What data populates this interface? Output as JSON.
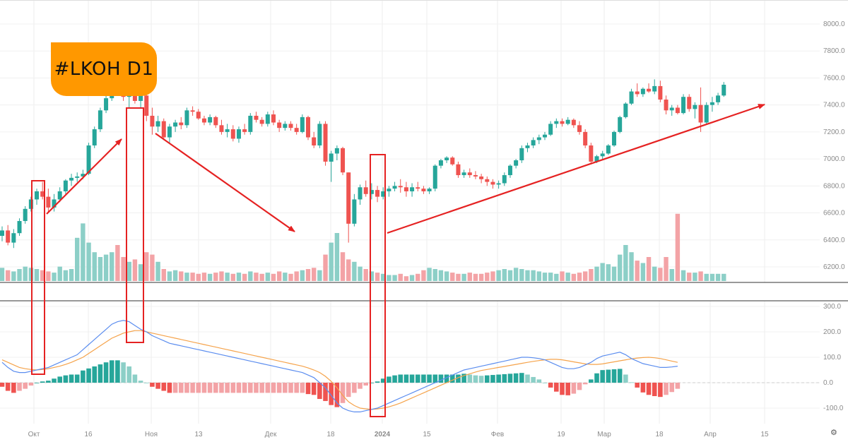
{
  "badge_text": "#LKOH D1",
  "settings_icon": "gear-icon",
  "colors": {
    "up": "#26a69a",
    "down": "#ef5350",
    "vol_up": "#8ccfc7",
    "vol_down": "#f3a3a6",
    "macd_line": "#5b8def",
    "signal_line": "#f5a34b",
    "arrow": "#e52222",
    "box": "#e52222",
    "badge": "#ff9800"
  },
  "chart_data": [
    {
      "type": "candlestick",
      "title": "#LKOH D1",
      "price_ticks": [
        "8000.0",
        "7800.0",
        "7600.0",
        "7400.0",
        "7200.0",
        "7000.0",
        "6800.0",
        "6600.0",
        "6400.0",
        "6200.0"
      ],
      "ylim": [
        6100,
        8100
      ],
      "x_labels": [
        "Окт",
        "16",
        "Ноя",
        "13",
        "Дек",
        "18",
        "2024",
        "15",
        "Фев",
        "19",
        "Мар",
        "18",
        "Апр",
        "15"
      ],
      "grid": true,
      "candles": [
        [
          6430,
          6500,
          6390,
          6470
        ],
        [
          6470,
          6510,
          6360,
          6380
        ],
        [
          6380,
          6480,
          6340,
          6450
        ],
        [
          6450,
          6560,
          6430,
          6540
        ],
        [
          6540,
          6650,
          6520,
          6630
        ],
        [
          6630,
          6720,
          6610,
          6700
        ],
        [
          6700,
          6780,
          6660,
          6760
        ],
        [
          6760,
          6830,
          6700,
          6720
        ],
        [
          6720,
          6780,
          6600,
          6640
        ],
        [
          6640,
          6740,
          6610,
          6700
        ],
        [
          6700,
          6790,
          6680,
          6760
        ],
        [
          6760,
          6850,
          6740,
          6840
        ],
        [
          6840,
          6890,
          6800,
          6860
        ],
        [
          6860,
          6900,
          6830,
          6870
        ],
        [
          6870,
          6920,
          6850,
          6890
        ],
        [
          6890,
          7120,
          6880,
          7100
        ],
        [
          7100,
          7240,
          7080,
          7220
        ],
        [
          7220,
          7380,
          7200,
          7360
        ],
        [
          7360,
          7480,
          7340,
          7450
        ],
        [
          7450,
          7560,
          7430,
          7540
        ],
        [
          7540,
          7600,
          7480,
          7520
        ],
        [
          7520,
          7560,
          7430,
          7460
        ],
        [
          7460,
          7510,
          7380,
          7490
        ],
        [
          7490,
          7520,
          7410,
          7430
        ],
        [
          7430,
          7500,
          7380,
          7470
        ],
        [
          7470,
          7490,
          7280,
          7320
        ],
        [
          7320,
          7380,
          7180,
          7240
        ],
        [
          7240,
          7320,
          7200,
          7280
        ],
        [
          7280,
          7300,
          7140,
          7160
        ],
        [
          7160,
          7260,
          7120,
          7240
        ],
        [
          7240,
          7290,
          7200,
          7270
        ],
        [
          7270,
          7310,
          7220,
          7250
        ],
        [
          7250,
          7380,
          7230,
          7360
        ],
        [
          7360,
          7390,
          7320,
          7350
        ],
        [
          7350,
          7370,
          7290,
          7300
        ],
        [
          7300,
          7320,
          7250,
          7270
        ],
        [
          7270,
          7330,
          7250,
          7310
        ],
        [
          7310,
          7320,
          7230,
          7250
        ],
        [
          7250,
          7290,
          7180,
          7200
        ],
        [
          7200,
          7260,
          7160,
          7220
        ],
        [
          7220,
          7250,
          7130,
          7150
        ],
        [
          7150,
          7240,
          7120,
          7220
        ],
        [
          7220,
          7260,
          7180,
          7200
        ],
        [
          7200,
          7340,
          7180,
          7320
        ],
        [
          7320,
          7350,
          7270,
          7290
        ],
        [
          7290,
          7310,
          7240,
          7260
        ],
        [
          7260,
          7350,
          7240,
          7330
        ],
        [
          7330,
          7360,
          7250,
          7270
        ],
        [
          7270,
          7290,
          7200,
          7230
        ],
        [
          7230,
          7280,
          7210,
          7260
        ],
        [
          7260,
          7280,
          7210,
          7230
        ],
        [
          7230,
          7260,
          7180,
          7200
        ],
        [
          7200,
          7330,
          7190,
          7310
        ],
        [
          7310,
          7320,
          7140,
          7160
        ],
        [
          7160,
          7200,
          7080,
          7100
        ],
        [
          7100,
          7280,
          7080,
          7260
        ],
        [
          7260,
          7280,
          6950,
          6980
        ],
        [
          6980,
          7060,
          6830,
          7040
        ],
        [
          7040,
          7100,
          6990,
          7080
        ],
        [
          7080,
          7090,
          6880,
          6900
        ],
        [
          6900,
          6900,
          6380,
          6520
        ],
        [
          6520,
          6740,
          6500,
          6700
        ],
        [
          6700,
          6810,
          6660,
          6790
        ],
        [
          6790,
          6840,
          6720,
          6740
        ],
        [
          6740,
          6820,
          6700,
          6770
        ],
        [
          6770,
          6800,
          6680,
          6720
        ],
        [
          6720,
          6790,
          6700,
          6760
        ],
        [
          6760,
          6800,
          6720,
          6780
        ],
        [
          6780,
          6830,
          6760,
          6800
        ],
        [
          6800,
          6850,
          6750,
          6790
        ],
        [
          6790,
          6830,
          6720,
          6760
        ],
        [
          6760,
          6820,
          6720,
          6790
        ],
        [
          6790,
          6830,
          6760,
          6780
        ],
        [
          6780,
          6800,
          6740,
          6760
        ],
        [
          6760,
          6790,
          6740,
          6780
        ],
        [
          6780,
          6960,
          6760,
          6950
        ],
        [
          6950,
          7000,
          6930,
          6990
        ],
        [
          6990,
          7020,
          6970,
          7010
        ],
        [
          7010,
          7020,
          6950,
          6960
        ],
        [
          6960,
          6980,
          6860,
          6880
        ],
        [
          6880,
          6920,
          6860,
          6900
        ],
        [
          6900,
          6930,
          6860,
          6880
        ],
        [
          6880,
          6910,
          6850,
          6870
        ],
        [
          6870,
          6890,
          6820,
          6850
        ],
        [
          6850,
          6870,
          6800,
          6830
        ],
        [
          6830,
          6850,
          6780,
          6810
        ],
        [
          6810,
          6840,
          6780,
          6820
        ],
        [
          6820,
          6900,
          6800,
          6880
        ],
        [
          6880,
          6960,
          6860,
          6950
        ],
        [
          6950,
          7000,
          6930,
          6990
        ],
        [
          6990,
          7100,
          6970,
          7080
        ],
        [
          7080,
          7120,
          7050,
          7100
        ],
        [
          7100,
          7160,
          7080,
          7140
        ],
        [
          7140,
          7180,
          7110,
          7160
        ],
        [
          7160,
          7200,
          7140,
          7180
        ],
        [
          7180,
          7280,
          7170,
          7260
        ],
        [
          7260,
          7300,
          7230,
          7280
        ],
        [
          7280,
          7300,
          7240,
          7260
        ],
        [
          7260,
          7310,
          7250,
          7290
        ],
        [
          7290,
          7300,
          7230,
          7250
        ],
        [
          7250,
          7280,
          7180,
          7200
        ],
        [
          7200,
          7220,
          7080,
          7100
        ],
        [
          7100,
          7120,
          6960,
          6980
        ],
        [
          6980,
          7030,
          6970,
          7020
        ],
        [
          7020,
          7060,
          7000,
          7040
        ],
        [
          7040,
          7110,
          7030,
          7100
        ],
        [
          7100,
          7210,
          7090,
          7200
        ],
        [
          7200,
          7320,
          7190,
          7310
        ],
        [
          7310,
          7420,
          7300,
          7410
        ],
        [
          7410,
          7520,
          7400,
          7500
        ],
        [
          7500,
          7560,
          7460,
          7480
        ],
        [
          7480,
          7530,
          7460,
          7520
        ],
        [
          7520,
          7560,
          7490,
          7500
        ],
        [
          7500,
          7590,
          7480,
          7540
        ],
        [
          7540,
          7580,
          7420,
          7440
        ],
        [
          7440,
          7470,
          7330,
          7360
        ],
        [
          7360,
          7400,
          7320,
          7380
        ],
        [
          7380,
          7400,
          7330,
          7340
        ],
        [
          7340,
          7480,
          7330,
          7460
        ],
        [
          7460,
          7480,
          7350,
          7370
        ],
        [
          7370,
          7420,
          7300,
          7400
        ],
        [
          7400,
          7530,
          7200,
          7270
        ],
        [
          7270,
          7420,
          7260,
          7400
        ],
        [
          7400,
          7460,
          7350,
          7420
        ],
        [
          7420,
          7490,
          7400,
          7470
        ],
        [
          7470,
          7570,
          7460,
          7550
        ]
      ],
      "volume_profile": [
        0.55,
        0.45,
        0.4,
        0.5,
        0.6,
        0.55,
        0.5,
        0.45,
        0.4,
        0.35,
        0.6,
        0.45,
        0.5,
        1.8,
        2.4,
        1.6,
        1.2,
        1.0,
        1.1,
        1.2,
        1.5,
        1.0,
        0.8,
        0.9,
        0.7,
        1.2,
        1.1,
        0.8,
        0.5,
        0.4,
        0.45,
        0.4,
        0.35,
        0.35,
        0.3,
        0.35,
        0.3,
        0.35,
        0.4,
        0.35,
        0.3,
        0.35,
        0.3,
        0.4,
        0.35,
        0.3,
        0.35,
        0.3,
        0.4,
        0.35,
        0.3,
        0.4,
        0.45,
        0.5,
        0.55,
        0.45,
        1.1,
        1.6,
        2.0,
        1.2,
        0.9,
        0.8,
        0.6,
        0.5,
        0.4,
        0.35,
        0.3,
        0.25,
        0.25,
        0.3,
        0.2,
        0.25,
        0.3,
        0.45,
        0.55,
        0.5,
        0.45,
        0.4,
        0.35,
        0.3,
        0.3,
        0.35,
        0.3,
        0.3,
        0.35,
        0.4,
        0.45,
        0.5,
        0.45,
        0.55,
        0.5,
        0.45,
        0.45,
        0.4,
        0.35,
        0.35,
        0.3,
        0.4,
        0.35,
        0.3,
        0.35,
        0.4,
        0.5,
        0.6,
        0.75,
        0.7,
        0.6,
        1.1,
        1.5,
        1.2,
        0.85,
        0.75,
        1.0,
        0.6,
        0.55,
        1.0,
        0.5,
        2.8,
        0.45,
        0.35,
        0.35,
        0.4
      ]
    },
    {
      "type": "line",
      "title": "",
      "indicator_ticks": [
        "300.0",
        "200.0",
        "100.0",
        "0.0",
        "-100.0"
      ],
      "ylim": [
        -145,
        315
      ],
      "series": [
        {
          "values": [
            80,
            60,
            45,
            40,
            40,
            45,
            50,
            55,
            60,
            70,
            80,
            90,
            100,
            110,
            130,
            150,
            170,
            190,
            210,
            230,
            240,
            245,
            240,
            225,
            210,
            200,
            185,
            175,
            165,
            155,
            150,
            145,
            140,
            135,
            130,
            125,
            120,
            115,
            110,
            105,
            100,
            95,
            90,
            85,
            80,
            75,
            70,
            65,
            60,
            55,
            50,
            45,
            40,
            30,
            20,
            0,
            -20,
            -50,
            -80,
            -100,
            -110,
            -115,
            -115,
            -110,
            -105,
            -100,
            -90,
            -80,
            -70,
            -60,
            -50,
            -40,
            -30,
            -20,
            -10,
            0,
            10,
            20,
            30,
            40,
            50,
            55,
            60,
            65,
            70,
            75,
            80,
            85,
            90,
            95,
            100,
            100,
            98,
            95,
            90,
            80,
            70,
            60,
            55,
            55,
            60,
            70,
            80,
            95,
            105,
            110,
            115,
            120,
            110,
            95,
            85,
            75,
            70,
            65,
            60,
            60,
            62,
            65
          ]
        },
        {
          "values": [
            90,
            80,
            70,
            60,
            55,
            52,
            50,
            52,
            55,
            60,
            65,
            72,
            80,
            90,
            100,
            115,
            130,
            145,
            160,
            175,
            185,
            195,
            200,
            205,
            205,
            200,
            195,
            190,
            185,
            180,
            175,
            170,
            165,
            160,
            155,
            150,
            145,
            140,
            135,
            130,
            125,
            120,
            115,
            110,
            105,
            100,
            95,
            90,
            85,
            80,
            75,
            70,
            65,
            58,
            50,
            40,
            25,
            5,
            -20,
            -50,
            -75,
            -90,
            -100,
            -103,
            -105,
            -103,
            -100,
            -95,
            -88,
            -80,
            -70,
            -60,
            -50,
            -40,
            -30,
            -20,
            -10,
            0,
            10,
            20,
            28,
            35,
            42,
            48,
            52,
            56,
            60,
            64,
            68,
            72,
            76,
            80,
            84,
            87,
            90,
            92,
            92,
            90,
            86,
            82,
            78,
            74,
            72,
            72,
            74,
            78,
            82,
            86,
            90,
            94,
            97,
            99,
            100,
            98,
            95,
            90,
            85,
            80,
            75,
            70,
            68,
            66
          ]
        }
      ]
    }
  ]
}
